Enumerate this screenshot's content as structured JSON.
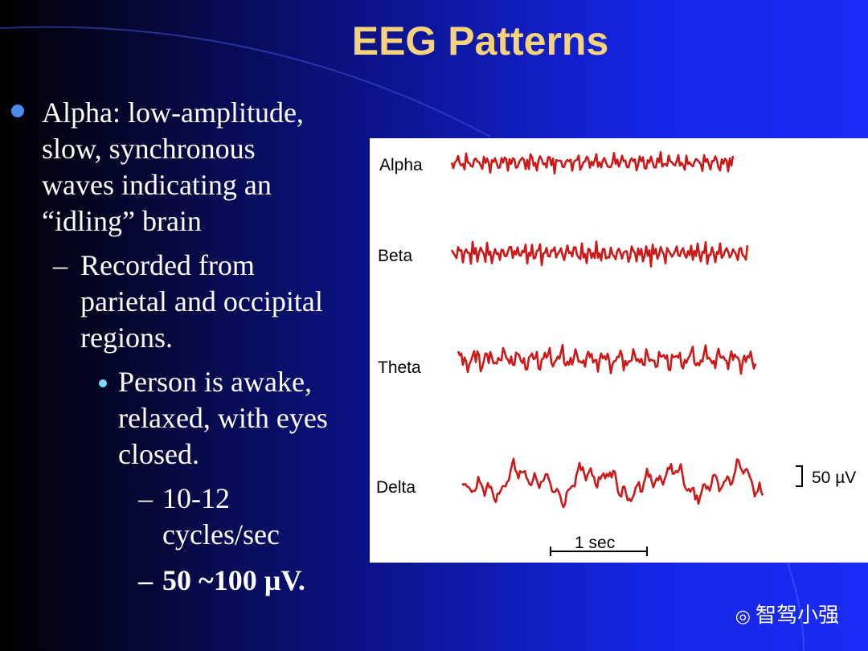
{
  "slide": {
    "title": "EEG Patterns",
    "outline": [
      {
        "lines": [
          "Alpha: low-amplitude,",
          "slow, synchronous",
          "waves indicating an",
          "“idling” brain"
        ]
      },
      {
        "lines": [
          "Recorded from",
          "parietal and occipital",
          "regions."
        ]
      },
      {
        "lines": [
          "Person is awake,",
          "relaxed, with eyes",
          "closed."
        ]
      },
      {
        "lines": [
          "10-12",
          "cycles/sec"
        ]
      },
      {
        "lines": [
          "50 ~100 µV."
        ]
      }
    ]
  },
  "figure": {
    "waves": [
      "Alpha",
      "Beta",
      "Theta",
      "Delta"
    ],
    "amplitude_scale": "50 µV",
    "time_scale": "1 sec"
  },
  "watermark": "智驾小强"
}
